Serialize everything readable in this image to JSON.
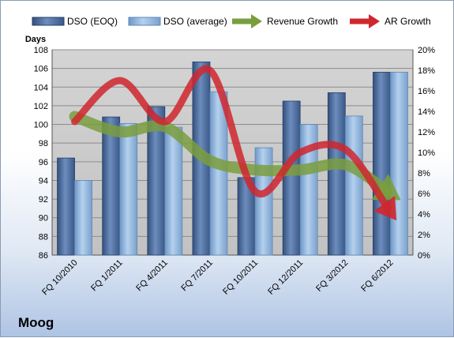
{
  "chart_data": {
    "type": "bar",
    "categories": [
      "FQ 10/2010",
      "FQ 1/2011",
      "FQ 4/2011",
      "FQ 7/2011",
      "FQ 10/2011",
      "FQ 12/2011",
      "FQ 3/2012",
      "FQ 6/2012"
    ],
    "series": [
      {
        "name": "DSO (EOQ)",
        "type": "bar",
        "axis": "left",
        "color": "#4f6f9f",
        "values": [
          96.4,
          100.8,
          101.9,
          106.7,
          94.3,
          102.5,
          103.4,
          105.6
        ]
      },
      {
        "name": "DSO (average)",
        "type": "bar",
        "axis": "left",
        "color": "#8fb4dc",
        "values": [
          94.0,
          100.1,
          99.7,
          103.5,
          97.5,
          100.0,
          100.9,
          105.6
        ]
      },
      {
        "name": "Revenue Growth",
        "type": "line",
        "axis": "right",
        "color": "#7a9e3e",
        "values": [
          13.5,
          12.0,
          12.5,
          9.2,
          8.3,
          8.3,
          8.8,
          6.0
        ]
      },
      {
        "name": "AR Growth",
        "type": "line",
        "axis": "right",
        "color": "#d0262e",
        "values": [
          13.0,
          17.0,
          13.0,
          18.0,
          6.2,
          10.0,
          10.3,
          4.2
        ]
      }
    ],
    "ylabel": "Days",
    "ylim": [
      86,
      108
    ],
    "yticks": [
      86,
      88,
      90,
      92,
      94,
      96,
      98,
      100,
      102,
      104,
      106,
      108
    ],
    "y2lim": [
      0,
      20
    ],
    "y2ticks": [
      "0%",
      "2%",
      "4%",
      "6%",
      "8%",
      "10%",
      "12%",
      "14%",
      "16%",
      "18%",
      "20%"
    ],
    "legend": "top",
    "grid": true
  },
  "company": "Moog"
}
